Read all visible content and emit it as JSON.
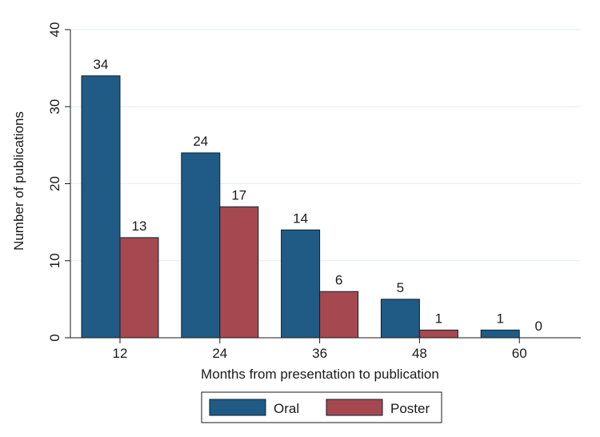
{
  "chart_data": {
    "type": "bar",
    "categories": [
      "12",
      "24",
      "36",
      "48",
      "60"
    ],
    "series": [
      {
        "name": "Oral",
        "values": [
          34,
          24,
          14,
          5,
          1
        ],
        "color": "#1f5b85"
      },
      {
        "name": "Poster",
        "values": [
          13,
          17,
          6,
          1,
          0
        ],
        "color": "#a5484f"
      }
    ],
    "xlabel": "Months from presentation to publication",
    "ylabel": "Number of publications",
    "ylim": [
      0,
      40
    ],
    "yticks": [
      "0",
      "10",
      "20",
      "30",
      "40"
    ],
    "grid": true,
    "legend_position": "bottom",
    "bar_edge_color": "#0c2233",
    "background": "#ffffff",
    "grid_color": "#e6edf2"
  }
}
